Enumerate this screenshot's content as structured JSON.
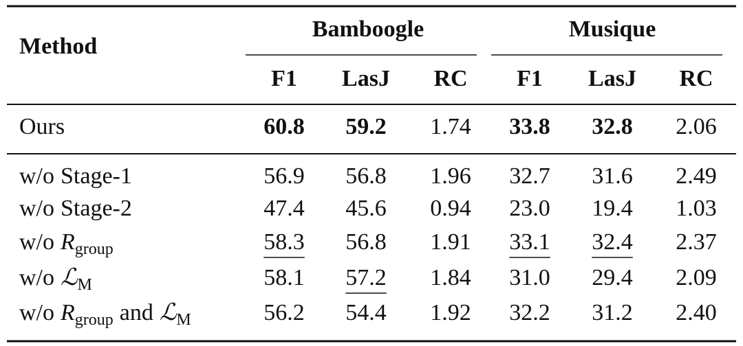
{
  "header": {
    "method": "Method",
    "groups": [
      {
        "name": "Bamboogle",
        "columns": [
          "F1",
          "LasJ",
          "RC"
        ]
      },
      {
        "name": "Musique",
        "columns": [
          "F1",
          "LasJ",
          "RC"
        ]
      }
    ]
  },
  "rows": [
    {
      "method": [
        {
          "text": "Ours"
        }
      ],
      "cells": [
        "60.8",
        "59.2",
        "1.74",
        "33.8",
        "32.8",
        "2.06"
      ],
      "bold": [
        0,
        1,
        3,
        4
      ],
      "underline": []
    },
    {
      "method": [
        {
          "text": "w/o"
        },
        {
          "text": "Stage-1"
        }
      ],
      "cells": [
        "56.9",
        "56.8",
        "1.96",
        "32.7",
        "31.6",
        "2.49"
      ],
      "bold": [],
      "underline": []
    },
    {
      "method": [
        {
          "text": "w/o"
        },
        {
          "text": "Stage-2"
        }
      ],
      "cells": [
        "47.4",
        "45.6",
        "0.94",
        "23.0",
        "19.4",
        "1.03"
      ],
      "bold": [],
      "underline": []
    },
    {
      "method": [
        {
          "text": "w/o"
        },
        {
          "text": "R",
          "style": "math"
        },
        {
          "text": "group",
          "style": "sub"
        }
      ],
      "cells": [
        "58.3",
        "56.8",
        "1.91",
        "33.1",
        "32.4",
        "2.37"
      ],
      "bold": [],
      "underline": [
        0,
        3,
        4
      ]
    },
    {
      "method": [
        {
          "text": "w/o"
        },
        {
          "text": "ℒ",
          "style": "math"
        },
        {
          "text": "M",
          "style": "sub"
        }
      ],
      "cells": [
        "58.1",
        "57.2",
        "1.84",
        "31.0",
        "29.4",
        "2.09"
      ],
      "bold": [],
      "underline": [
        1
      ]
    },
    {
      "method": [
        {
          "text": "w/o"
        },
        {
          "text": "R",
          "style": "math"
        },
        {
          "text": "group",
          "style": "sub"
        },
        {
          "text": "and"
        },
        {
          "text": "ℒ",
          "style": "math"
        },
        {
          "text": "M",
          "style": "sub"
        }
      ],
      "cells": [
        "56.2",
        "54.4",
        "1.92",
        "32.2",
        "31.2",
        "2.40"
      ],
      "bold": [],
      "underline": []
    }
  ]
}
